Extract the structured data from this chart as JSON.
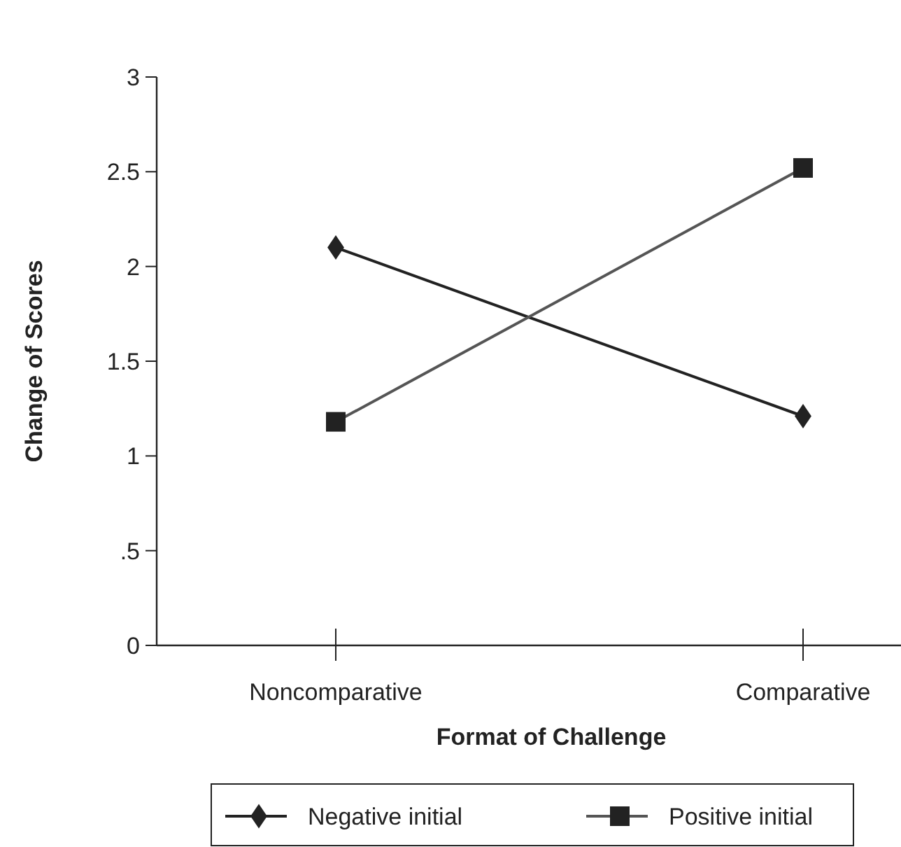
{
  "chart_data": {
    "type": "line",
    "xlabel": "Format of Challenge",
    "ylabel": "Change of Scores",
    "categories": [
      "Noncomparative",
      "Comparative"
    ],
    "series": [
      {
        "name": "Negative initial",
        "color": "#222222",
        "marker": "diamond",
        "values": [
          2.1,
          1.21
        ]
      },
      {
        "name": "Positive initial",
        "color": "#555555",
        "marker": "square",
        "values": [
          1.18,
          2.52
        ]
      }
    ],
    "ylim": [
      0,
      3
    ],
    "yticks": [
      0,
      {
        "value": 0.5,
        "label": ".5"
      },
      1,
      1.5,
      2,
      2.5,
      3
    ],
    "grid": false,
    "legend": "bottom"
  }
}
